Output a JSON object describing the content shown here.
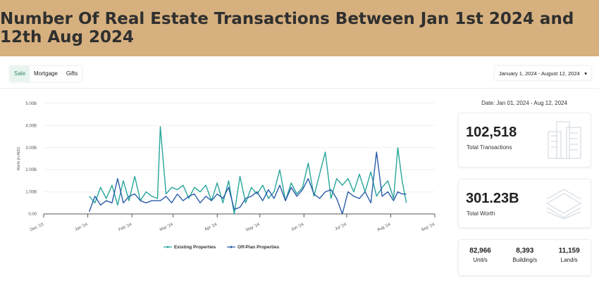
{
  "header": {
    "title": "Number Of Real Estate Transactions Between Jan 1st 2024 and 12th Aug 2024",
    "bg_color": "#d6b07f"
  },
  "tabs": [
    {
      "label": "Sale",
      "active": true
    },
    {
      "label": "Mortgage",
      "active": false
    },
    {
      "label": "Gifts",
      "active": false
    }
  ],
  "date_range": {
    "value": "January 1, 2024 - August 12, 2024",
    "icon": "caret-down-icon"
  },
  "summary": {
    "date_label": "Date: Jan 01, 2024 - Aug 12, 2024",
    "transactions": {
      "value": "102,518",
      "label": "Total Transactions",
      "icon": "buildings-icon"
    },
    "worth": {
      "value": "301.23B",
      "label": "Total Worth",
      "icon": "money-stack-icon"
    },
    "breakdown": [
      {
        "value": "82,966",
        "label": "Unit/s"
      },
      {
        "value": "8,393",
        "label": "Building/s"
      },
      {
        "value": "11,159",
        "label": "Land/s"
      }
    ]
  },
  "chart_data": {
    "type": "line",
    "ylabel": "Worth (in AED)",
    "ylim": [
      0,
      5
    ],
    "y_ticks": [
      "0.00",
      "1.00B",
      "2.00B",
      "3.00B",
      "4.00B",
      "5.00B"
    ],
    "x_ticks": [
      "Dec '23",
      "Jan '24",
      "Feb '24",
      "Mar '24",
      "Apr '24",
      "May '24",
      "Jun '24",
      "Jul '24",
      "Aug '24",
      "Sep '24"
    ],
    "x_tick_dates": [
      "2023-12-01",
      "2024-01-01",
      "2024-02-01",
      "2024-03-01",
      "2024-04-01",
      "2024-05-01",
      "2024-06-01",
      "2024-07-01",
      "2024-08-01",
      "2024-09-01"
    ],
    "grid": true,
    "legend": "bottom",
    "x": [
      "2024-01-02",
      "2024-01-06",
      "2024-01-10",
      "2024-01-14",
      "2024-01-18",
      "2024-01-22",
      "2024-01-26",
      "2024-01-30",
      "2024-02-03",
      "2024-02-07",
      "2024-02-11",
      "2024-02-15",
      "2024-02-19",
      "2024-02-21",
      "2024-02-25",
      "2024-02-29",
      "2024-03-04",
      "2024-03-08",
      "2024-03-12",
      "2024-03-16",
      "2024-03-20",
      "2024-03-24",
      "2024-03-28",
      "2024-04-01",
      "2024-04-05",
      "2024-04-09",
      "2024-04-13",
      "2024-04-17",
      "2024-04-21",
      "2024-04-25",
      "2024-04-29",
      "2024-05-03",
      "2024-05-07",
      "2024-05-11",
      "2024-05-15",
      "2024-05-19",
      "2024-05-23",
      "2024-05-27",
      "2024-05-31",
      "2024-06-04",
      "2024-06-08",
      "2024-06-12",
      "2024-06-16",
      "2024-06-20",
      "2024-06-24",
      "2024-06-28",
      "2024-07-02",
      "2024-07-06",
      "2024-07-10",
      "2024-07-14",
      "2024-07-18",
      "2024-07-22",
      "2024-07-26",
      "2024-07-30",
      "2024-08-03",
      "2024-08-06",
      "2024-08-09",
      "2024-08-12"
    ],
    "series": [
      {
        "name": "Existing Properties",
        "color": "#26a69a",
        "values": [
          0.8,
          0.5,
          1.2,
          0.7,
          1.3,
          0.4,
          1.5,
          0.6,
          1.7,
          0.6,
          1.0,
          0.8,
          0.7,
          3.95,
          0.9,
          1.2,
          1.1,
          1.3,
          0.7,
          1.2,
          1.0,
          1.3,
          0.6,
          1.4,
          0.5,
          1.5,
          0.0,
          1.7,
          0.5,
          1.2,
          0.9,
          1.3,
          0.7,
          1.0,
          2.0,
          0.6,
          1.4,
          0.9,
          1.2,
          2.3,
          0.8,
          1.8,
          2.8,
          0.7,
          1.6,
          1.3,
          1.6,
          1.0,
          1.8,
          1.0,
          1.9,
          0.8,
          1.2,
          1.5,
          0.7,
          3.0,
          1.5,
          0.5
        ]
      },
      {
        "name": "Off-Plan Properties",
        "color": "#2a5ca8",
        "values": [
          0.1,
          0.8,
          0.4,
          0.6,
          0.5,
          1.6,
          0.5,
          0.8,
          0.9,
          0.6,
          0.5,
          0.6,
          0.6,
          0.6,
          0.8,
          0.5,
          0.9,
          0.6,
          0.8,
          0.9,
          0.5,
          0.8,
          0.6,
          0.9,
          0.7,
          1.2,
          0.2,
          0.3,
          0.7,
          0.8,
          1.0,
          0.6,
          1.1,
          0.7,
          1.3,
          0.6,
          1.2,
          0.8,
          1.1,
          1.6,
          0.9,
          0.7,
          1.0,
          1.1,
          0.7,
          0.0,
          1.0,
          0.8,
          0.7,
          1.0,
          0.5,
          2.8,
          0.8,
          1.0,
          0.6,
          1.0,
          0.9,
          0.9
        ]
      }
    ]
  }
}
